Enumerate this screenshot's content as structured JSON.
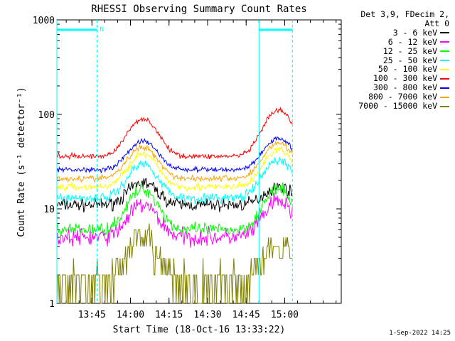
{
  "chart_data": {
    "type": "line",
    "title": "RHESSI Observing Summary Count Rates",
    "xlabel": "Start Time (18-Oct-16 13:33:22)",
    "ylabel": "Count Rate (s⁻¹ detector⁻¹)",
    "yscale": "log",
    "ylim": [
      1,
      1000
    ],
    "xlim": [
      13.5228,
      15.3667
    ],
    "x_ticks": [
      "13:45",
      "14:00",
      "14:15",
      "14:30",
      "14:45",
      "15:00"
    ],
    "y_ticks": [
      "1",
      "10",
      "100",
      "1000"
    ],
    "annotation_flag": "N",
    "night_intervals": [
      [
        13.5228,
        13.7833
      ],
      [
        14.8333,
        15.05
      ]
    ],
    "legend_header": [
      "Det 3,9, FDecim 2,",
      "Att 0"
    ],
    "series": [
      {
        "name": "3 - 6 keV",
        "color": "#000000",
        "base": 11,
        "peak1": 19,
        "peak2": 17,
        "noise": 0.1
      },
      {
        "name": "6 - 12 keV",
        "color": "#ff00ff",
        "base": 5,
        "peak1": 11,
        "peak2": 12,
        "noise": 0.14
      },
      {
        "name": "12 - 25 keV",
        "color": "#00ff00",
        "base": 6,
        "peak1": 16,
        "peak2": 16,
        "noise": 0.1
      },
      {
        "name": "25 - 50 keV",
        "color": "#00ffff",
        "base": 13,
        "peak1": 30,
        "peak2": 33,
        "noise": 0.08
      },
      {
        "name": "50 - 100 keV",
        "color": "#ffff00",
        "base": 17,
        "peak1": 38,
        "peak2": 42,
        "noise": 0.06
      },
      {
        "name": "100 - 300 keV",
        "color": "#ff0000",
        "base": 36,
        "peak1": 90,
        "peak2": 110,
        "noise": 0.04
      },
      {
        "name": "300 - 800 keV",
        "color": "#0000ff",
        "base": 26,
        "peak1": 52,
        "peak2": 56,
        "noise": 0.04
      },
      {
        "name": "800 - 7000 keV",
        "color": "#ffa500",
        "base": 21,
        "peak1": 45,
        "peak2": 50,
        "noise": 0.05
      },
      {
        "name": "7000 - 15000 keV",
        "color": "#808000",
        "base": 1.6,
        "peak1": 4.5,
        "peak2": 4.5,
        "noise": 0.35
      }
    ]
  },
  "footer": {
    "timestamp": "1-Sep-2022 14:25"
  }
}
